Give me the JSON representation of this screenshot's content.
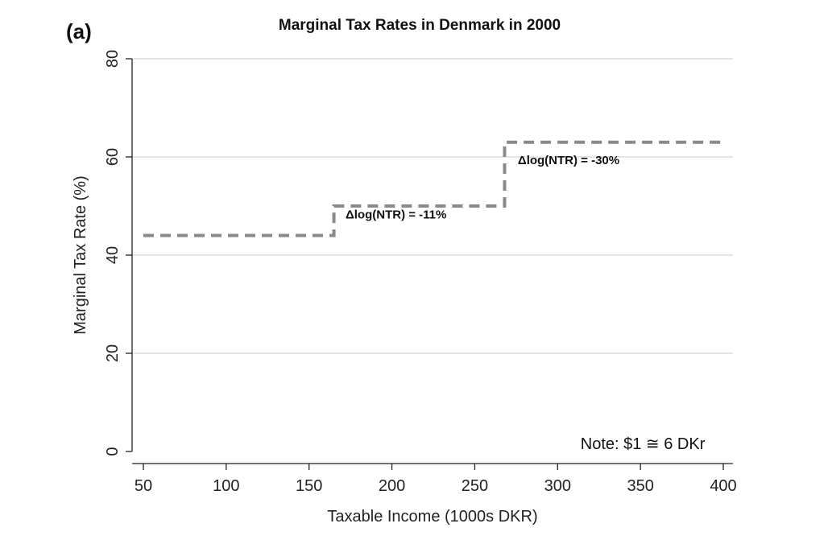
{
  "panel_label": "(a)",
  "chart_data": {
    "type": "line",
    "title": "Marginal Tax Rates in Denmark in 2000",
    "xlabel": "Taxable Income (1000s DKR)",
    "ylabel": "Marginal Tax Rate (%)",
    "xlim": [
      50,
      400
    ],
    "ylim": [
      0,
      80
    ],
    "x_ticks": [
      "50",
      "100",
      "150",
      "200",
      "250",
      "300",
      "350",
      "400"
    ],
    "y_ticks": [
      "0",
      "20",
      "40",
      "60",
      "80"
    ],
    "grid": true,
    "line_style": "dashed",
    "line_color": "#8a8a8a",
    "series": [
      {
        "step": true,
        "x": [
          50,
          165,
          165,
          268,
          268,
          400
        ],
        "y": [
          44,
          44,
          50,
          50,
          63,
          63
        ]
      }
    ],
    "annotations": [
      {
        "text": "Δlog(NTR) = -11%",
        "x": 172,
        "y": 47.5
      },
      {
        "text": "Δlog(NTR) = -30%",
        "x": 276,
        "y": 58.5
      },
      {
        "text": "Note: $1 ≅ 6 DKr",
        "x": 389,
        "y": 0.5
      }
    ]
  }
}
